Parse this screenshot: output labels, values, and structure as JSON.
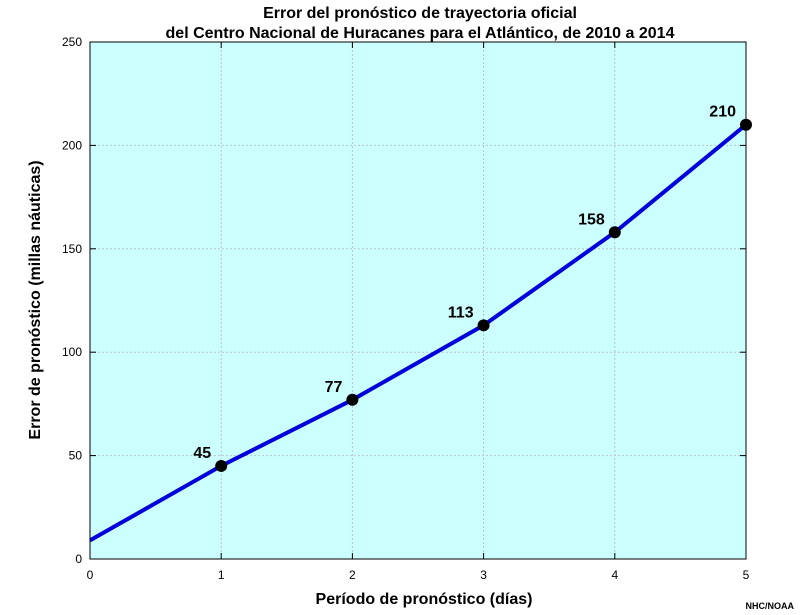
{
  "chart_data": {
    "type": "line",
    "title": "Error del pronóstico de trayectoria oficial",
    "subtitle": "del Centro Nacional de Huracanes para el Atlántico, de 2010 a 2014",
    "xlabel": "Período de pronóstico (días)",
    "ylabel": "Error de pronóstico (millas náuticas)",
    "xlim": [
      0,
      5
    ],
    "ylim": [
      0,
      250
    ],
    "xticks": [
      0,
      1,
      2,
      3,
      4,
      5
    ],
    "yticks": [
      0,
      50,
      100,
      150,
      200,
      250
    ],
    "grid": true,
    "background_color": "#ccffff",
    "line_color": "#0000dd",
    "marker_color": "#000000",
    "line_start": {
      "x": 0,
      "y": 9
    },
    "series": [
      {
        "x": [
          1,
          2,
          3,
          4,
          5
        ],
        "values": [
          45,
          77,
          113,
          158,
          210
        ],
        "labels": [
          "45",
          "77",
          "113",
          "158",
          "210"
        ]
      }
    ],
    "credit": "NHC/NOAA"
  }
}
